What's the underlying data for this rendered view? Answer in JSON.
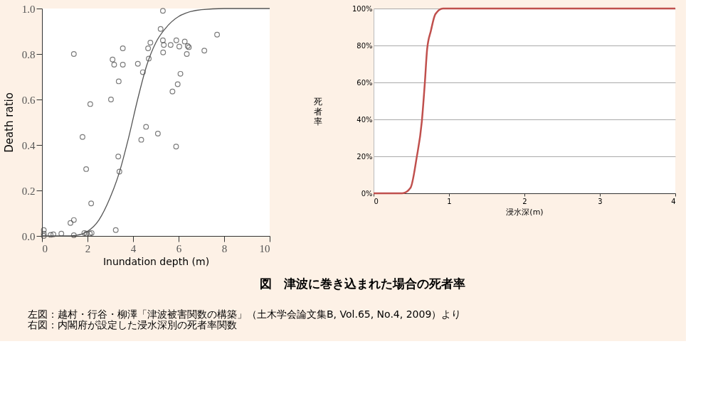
{
  "chart_data": [
    {
      "type": "scatter",
      "xlabel": "Inundation depth (m)",
      "ylabel": "Death ratio",
      "xlim": [
        0,
        10
      ],
      "ylim": [
        0,
        1
      ],
      "xticks": [
        0,
        2,
        4,
        6,
        8,
        10
      ],
      "yticks": [
        {
          "value": 0,
          "label": "0.0"
        },
        0.2,
        0.4,
        0.6,
        0.8,
        {
          "value": 1,
          "label": "1.0"
        }
      ],
      "grid": false,
      "annotations": [
        "図　津波に巻き込まれた場合の死者率",
        "左図：越村・行谷・柳澤「津波被害関数の構築」（土木学会論文集B, Vol.65, No.4, 2009）より",
        "右図：内閣府が設定した浸水深別の死者率関数"
      ],
      "series": [
        {
          "type": "scatter",
          "marker": "circle",
          "color": "#444444",
          "x": [
            1.4,
            5.31,
            5.21,
            7.69,
            3.55,
            4.76,
            4.66,
            5.31,
            5.35,
            5.65,
            5.9,
            6.03,
            6.27,
            6.4,
            6.45,
            6.36,
            7.13,
            5.32,
            3.1,
            3.17,
            3.55,
            4.21,
            4.69,
            4.43,
            3.37,
            6.08,
            5.96,
            5.73,
            3.03,
            2.12,
            4.57,
            5.09,
            1.78,
            4.36,
            5.89,
            3.35,
            1.94,
            3.4,
            2.16,
            1.4,
            1.25,
            3.24,
            2.18,
            1.86,
            1.4,
            0.08,
            0.08,
            0.08,
            0.38,
            0.5,
            0.85,
            1.95,
            2.1
          ],
          "values": [
            0.8,
            0.99,
            0.91,
            0.885,
            0.825,
            0.85,
            0.825,
            0.86,
            0.84,
            0.84,
            0.86,
            0.833,
            0.855,
            0.835,
            0.83,
            0.8,
            0.815,
            0.807,
            0.776,
            0.753,
            0.753,
            0.757,
            0.78,
            0.72,
            0.68,
            0.713,
            0.667,
            0.635,
            0.6,
            0.58,
            0.48,
            0.45,
            0.435,
            0.423,
            0.393,
            0.349,
            0.294,
            0.283,
            0.143,
            0.07,
            0.057,
            0.026,
            0.013,
            0.013,
            0.003,
            0.026,
            0.01,
            0.0,
            0.005,
            0.007,
            0.01,
            0.01,
            0.01
          ]
        },
        {
          "type": "line",
          "line_style": "solid",
          "color": "#555555",
          "x": [
            0,
            1,
            1.5,
            2,
            2.5,
            3,
            3.4,
            3.8,
            4.2,
            4.6,
            5,
            5.4,
            6,
            7,
            8,
            10
          ],
          "values": [
            0,
            0,
            0.003,
            0.02,
            0.07,
            0.17,
            0.28,
            0.43,
            0.6,
            0.75,
            0.85,
            0.91,
            0.965,
            0.995,
            1,
            1
          ]
        }
      ]
    },
    {
      "type": "line",
      "xlabel": "浸水深(m)",
      "ylabel": "死者率",
      "xlim": [
        0,
        4
      ],
      "ylim": [
        0,
        100
      ],
      "xticks": [
        0,
        1,
        2,
        3,
        4
      ],
      "yticks": [
        {
          "value": 0,
          "label": "0%"
        },
        {
          "value": 20,
          "label": "20%"
        },
        {
          "value": 40,
          "label": "40%"
        },
        {
          "value": 60,
          "label": "60%"
        },
        {
          "value": 80,
          "label": "80%"
        },
        {
          "value": 100,
          "label": "100%"
        }
      ],
      "grid": "y",
      "line_style": "solid",
      "color": "#c0504d",
      "x": [
        0,
        0.38,
        0.49,
        0.57,
        0.64,
        0.68,
        0.71,
        0.76,
        0.82,
        0.92,
        4
      ],
      "values": [
        0,
        0,
        3,
        19,
        39,
        60,
        78,
        88,
        97,
        100,
        100
      ]
    }
  ]
}
